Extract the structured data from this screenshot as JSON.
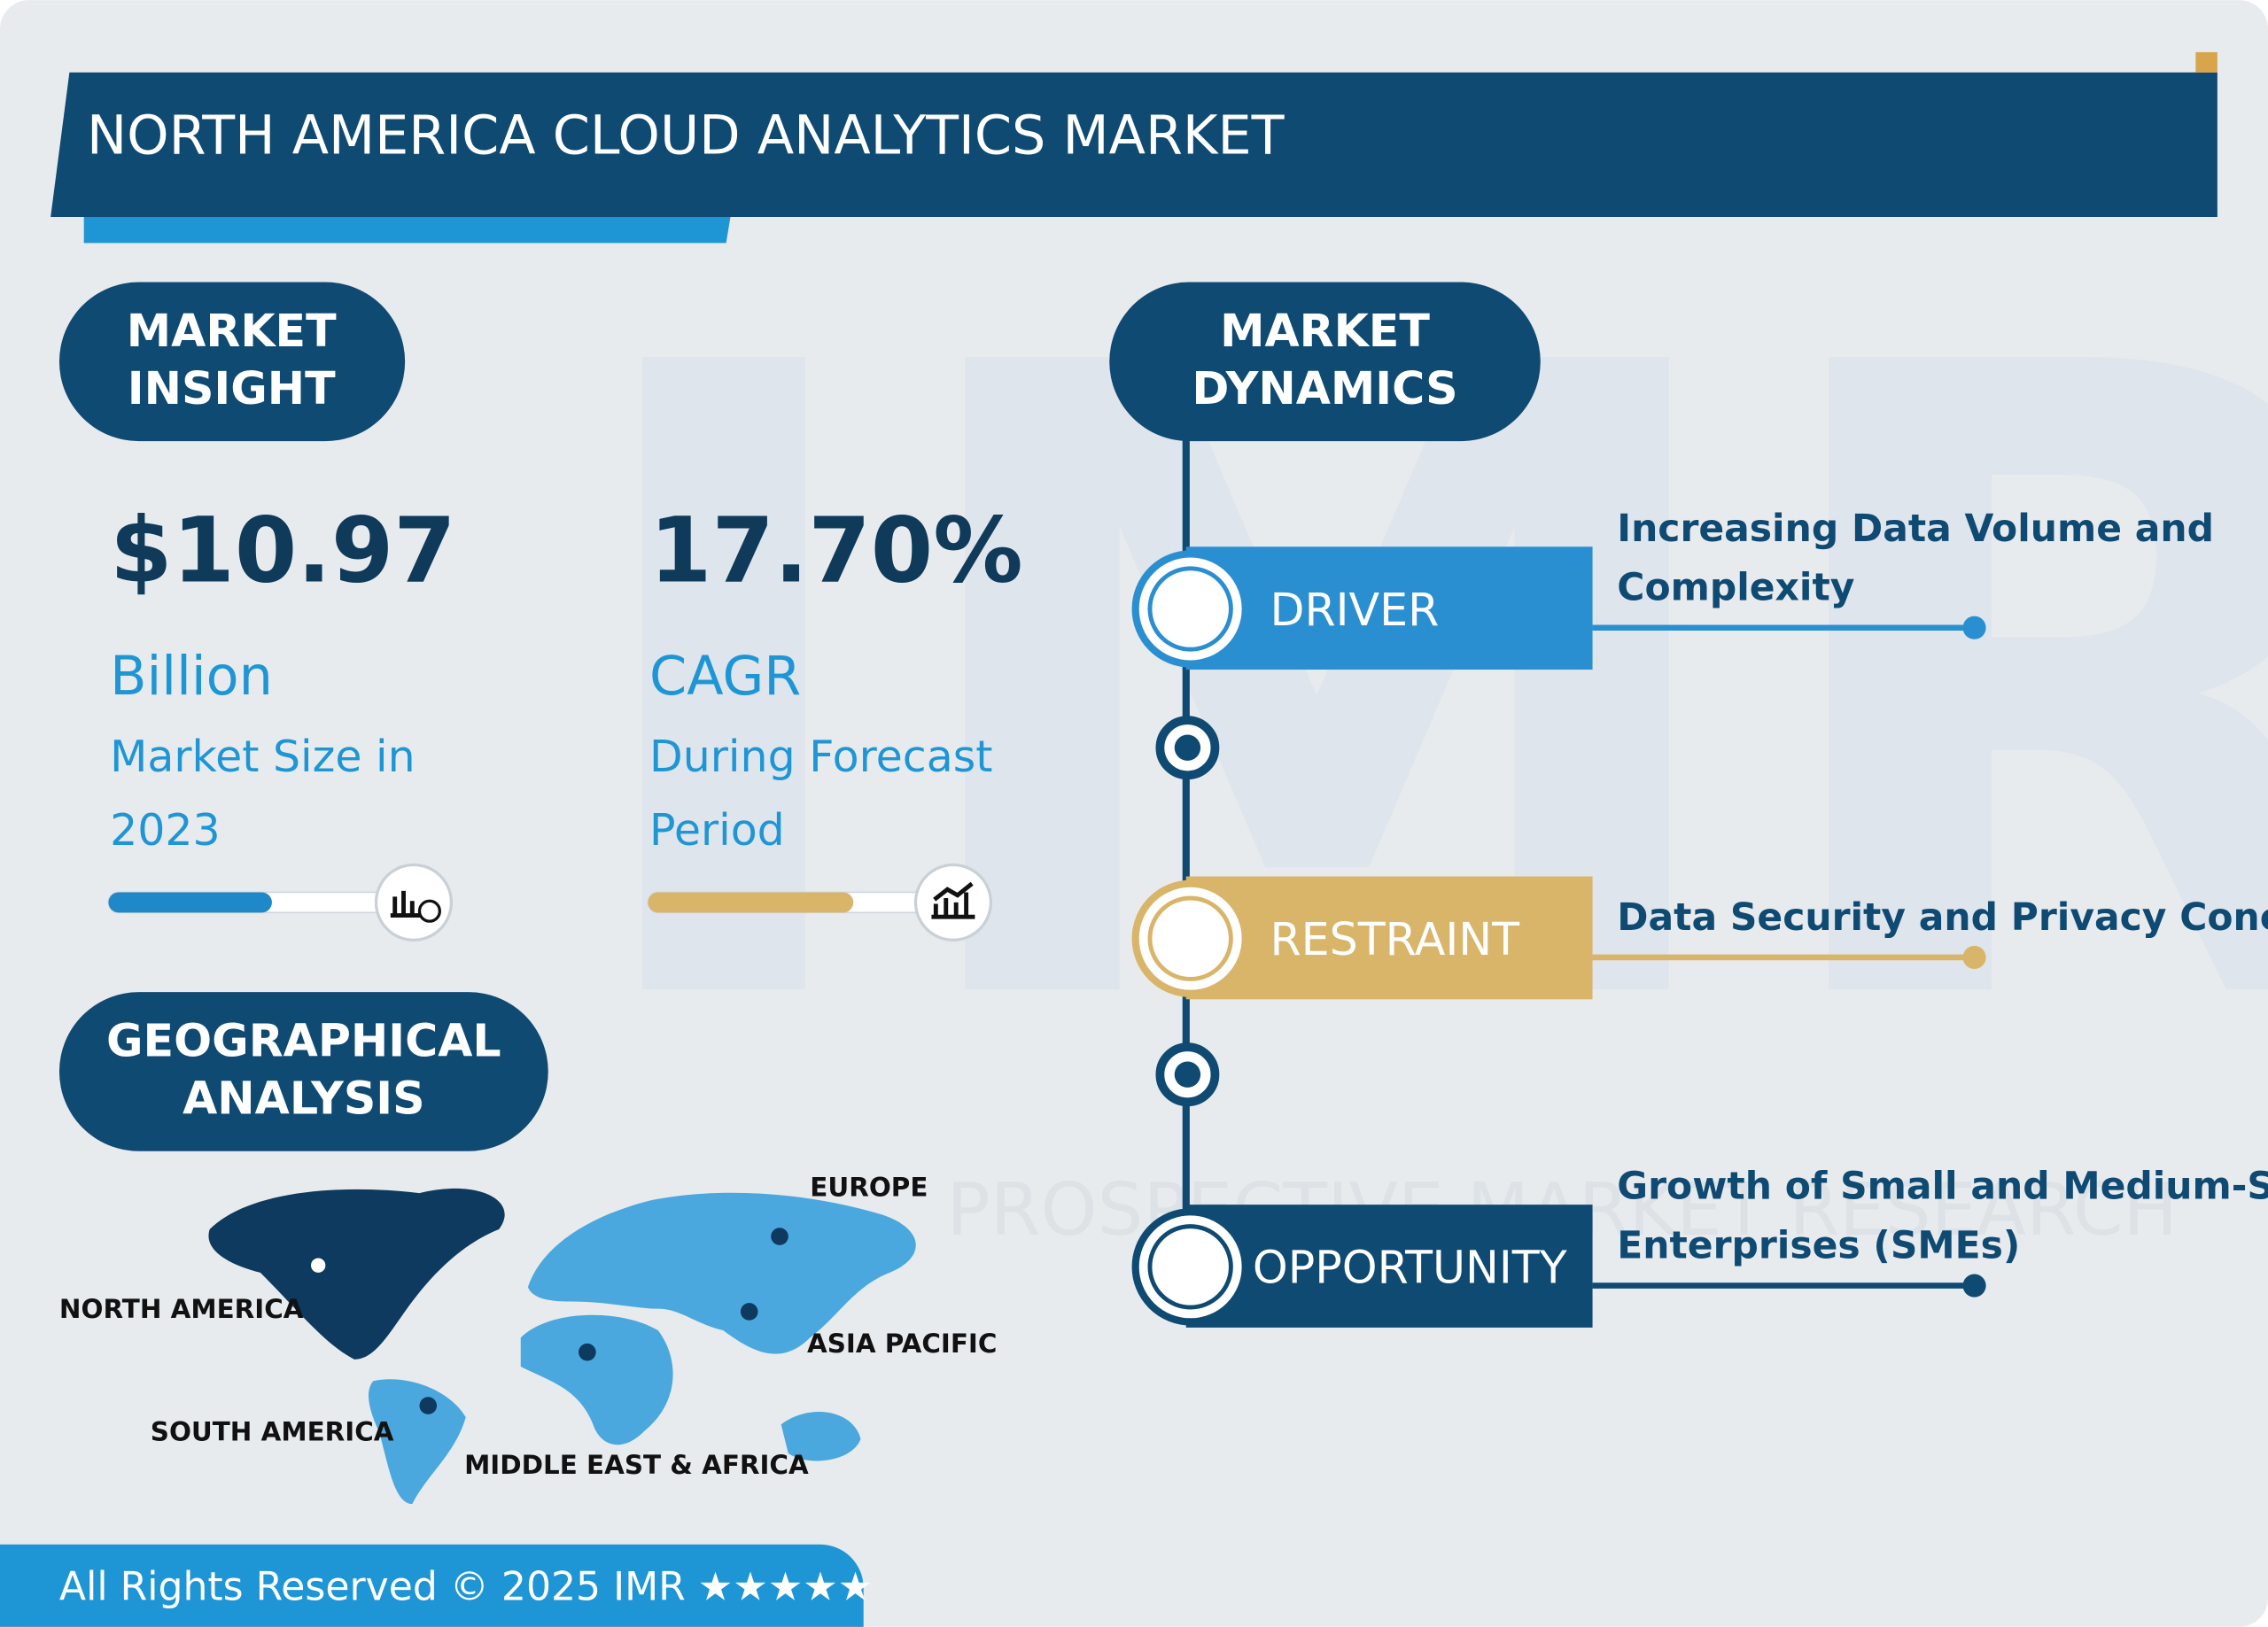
{
  "header": {
    "title": "NORTH AMERICA CLOUD ANALYTICS MARKET"
  },
  "insight": {
    "heading": [
      "MARKET",
      "INSIGHT"
    ],
    "market_size": {
      "value": "$10.97",
      "unit": "Billion",
      "caption": [
        "Market Size in",
        "2023"
      ]
    },
    "cagr": {
      "value": "17.70%",
      "unit": "CAGR",
      "caption": [
        "During Forecast",
        "Period"
      ]
    }
  },
  "geography": {
    "heading": [
      "GEOGRAPHICAL",
      "ANALYSIS"
    ],
    "regions": [
      "NORTH AMERICA",
      "SOUTH AMERICA",
      "MIDDLE EAST & AFRICA",
      "ASIA PACIFIC",
      "EUROPE"
    ]
  },
  "dynamics": {
    "heading": [
      "MARKET",
      "DYNAMICS"
    ],
    "items": [
      {
        "label": "DRIVER",
        "text": [
          "Increasing Data Volume and",
          "Complexity"
        ]
      },
      {
        "label": "RESTRAINT",
        "text": [
          "Data Security and Privacy Concerns"
        ]
      },
      {
        "label": "OPPORTUNITY",
        "text": [
          "Growth of Small and Medium-Sized",
          "Enterprises (SMEs)"
        ]
      }
    ]
  },
  "watermark": "PROSPECTIVE MARKET RESEARCH",
  "footer": "All Rights Reserved © 2025 IMR ★★★★★"
}
